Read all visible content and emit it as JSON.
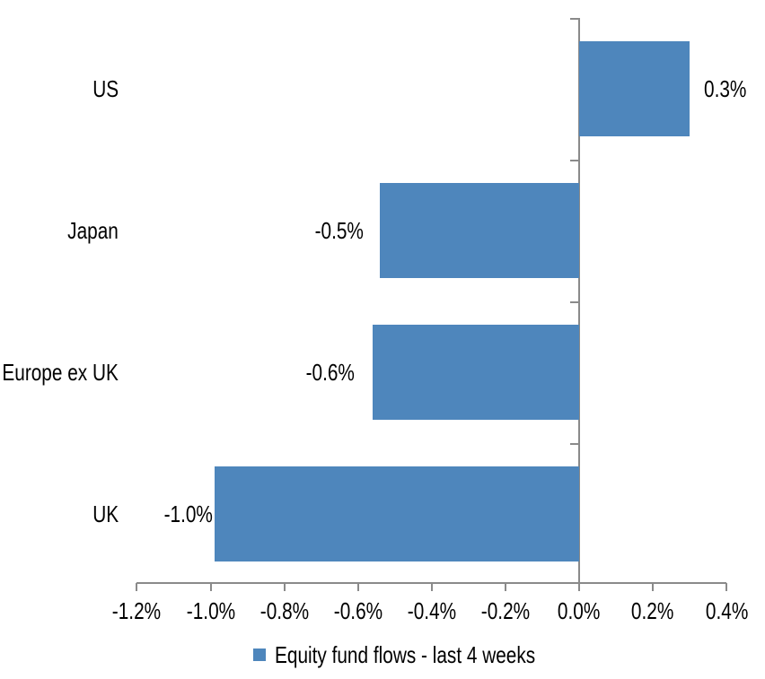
{
  "chart_data": {
    "type": "bar",
    "orientation": "horizontal",
    "title": "",
    "categories": [
      "US",
      "Japan",
      "Europe ex UK",
      "UK"
    ],
    "values": [
      0.3,
      -0.5,
      -0.6,
      -1.0
    ],
    "data_labels": [
      "0.3%",
      "-0.5%",
      "-0.6%",
      "-1.0%"
    ],
    "bar_extents_pct_estimated": [
      0.3,
      -0.54,
      -0.56,
      -0.99
    ],
    "unit": "%",
    "x_axis": {
      "range": [
        -1.2,
        0.4
      ],
      "tick_step": 0.2,
      "ticks": [
        -1.2,
        -1.0,
        -0.8,
        -0.6,
        -0.4,
        -0.2,
        0.0,
        0.2,
        0.4
      ],
      "tick_labels": [
        "-1.2%",
        "-1.0%",
        "-0.8%",
        "-0.6%",
        "-0.4%",
        "-0.2%",
        "0.0%",
        "0.2%",
        "0.4%"
      ]
    },
    "grid": false,
    "legend": {
      "position": "bottom",
      "label": "Equity fund flows - last 4 weeks"
    },
    "colors": {
      "bar": "#4E86BC",
      "axis": "#8A8A8A",
      "text": "#000000",
      "background": "#FFFFFF"
    }
  }
}
